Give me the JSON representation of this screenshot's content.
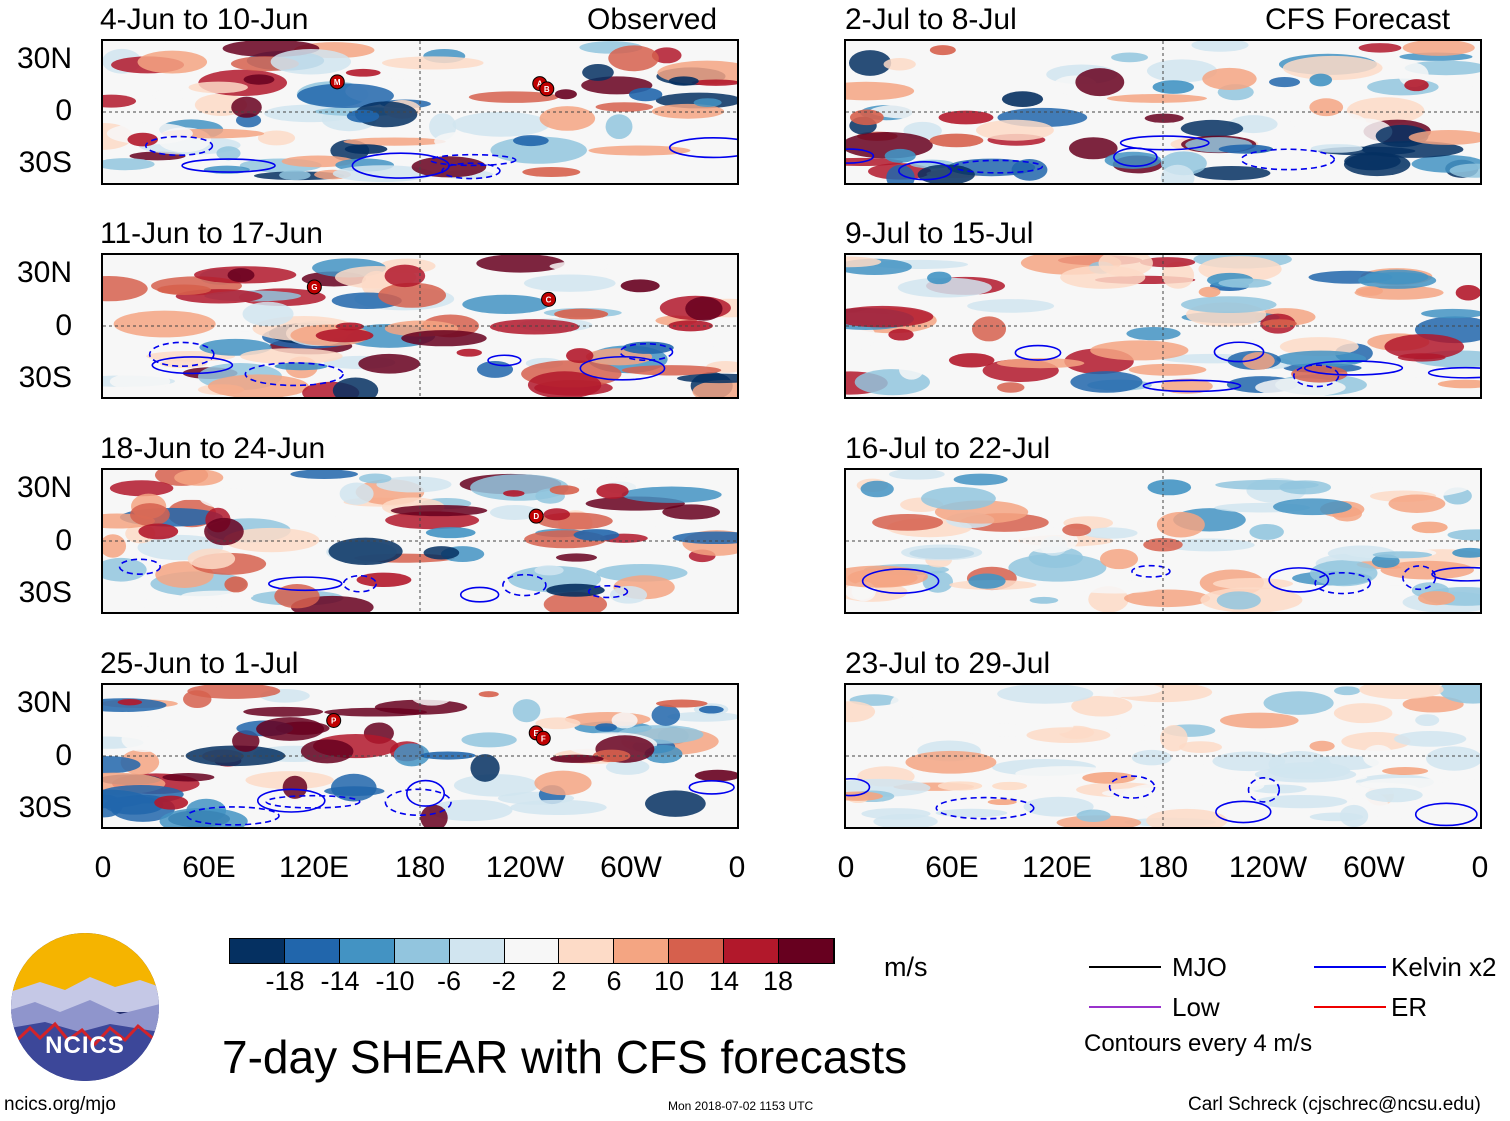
{
  "chart_data": {
    "type": "heatmap",
    "title": "7-day SHEAR with CFS forecasts",
    "units": "m/s",
    "columns": [
      {
        "header_right": "Observed",
        "panels": [
          {
            "period": "4-Jun to 10-Jun",
            "storms": [
              {
                "label": "M",
                "lon": 133,
                "lat": 17
              },
              {
                "label": "A",
                "lon": 248,
                "lat": 16
              },
              {
                "label": "B",
                "lon": 252,
                "lat": 13
              }
            ]
          },
          {
            "period": "11-Jun to 17-Jun",
            "storms": [
              {
                "label": "G",
                "lon": 120,
                "lat": 22
              },
              {
                "label": "C",
                "lon": 253,
                "lat": 15
              }
            ]
          },
          {
            "period": "18-Jun to 24-Jun",
            "storms": [
              {
                "label": "D",
                "lon": 246,
                "lat": 14
              }
            ]
          },
          {
            "period": "25-Jun to 1-Jul",
            "storms": [
              {
                "label": "P",
                "lon": 131,
                "lat": 20
              },
              {
                "label": "E",
                "lon": 246,
                "lat": 13
              },
              {
                "label": "F",
                "lon": 250,
                "lat": 10
              }
            ]
          }
        ]
      },
      {
        "header_right": "CFS Forecast",
        "panels": [
          {
            "period": "2-Jul to 8-Jul",
            "storms": []
          },
          {
            "period": "9-Jul to 15-Jul",
            "storms": []
          },
          {
            "period": "16-Jul to 22-Jul",
            "storms": []
          },
          {
            "period": "23-Jul to 29-Jul",
            "storms": []
          }
        ]
      }
    ],
    "y_ticks": [
      "30N",
      "0",
      "30S"
    ],
    "y_tick_values": [
      30,
      0,
      -30
    ],
    "ylim": [
      -40,
      40
    ],
    "x_ticks": [
      "0",
      "60E",
      "120E",
      "180",
      "120W",
      "60W",
      "0"
    ],
    "x_tick_values": [
      0,
      60,
      120,
      180,
      240,
      300,
      360
    ],
    "xlim": [
      0,
      360
    ],
    "colorbar": {
      "tick_labels": [
        "-18",
        "-14",
        "-10",
        "-6",
        "-2",
        "2",
        "6",
        "10",
        "14",
        "18"
      ],
      "colors": [
        "#053061",
        "#2166ac",
        "#4393c3",
        "#92c5de",
        "#d1e5f0",
        "#f7f7f7",
        "#fddbc7",
        "#f4a582",
        "#d6604d",
        "#b2182b",
        "#67001f"
      ]
    },
    "legend": [
      {
        "label": "MJO",
        "color": "#000000"
      },
      {
        "label": "Kelvin x2",
        "color": "#0000ee"
      },
      {
        "label": "Low",
        "color": "#9933cc"
      },
      {
        "label": "ER",
        "color": "#ee0000"
      }
    ],
    "contour_note": "Contours every 4 m/s"
  },
  "footer": {
    "logo_text": "NCICS",
    "url": "ncics.org/mjo",
    "timestamp": "Mon 2018-07-02 1153 UTC",
    "credit": "Carl Schreck (cjschrec@ncsu.edu)"
  }
}
